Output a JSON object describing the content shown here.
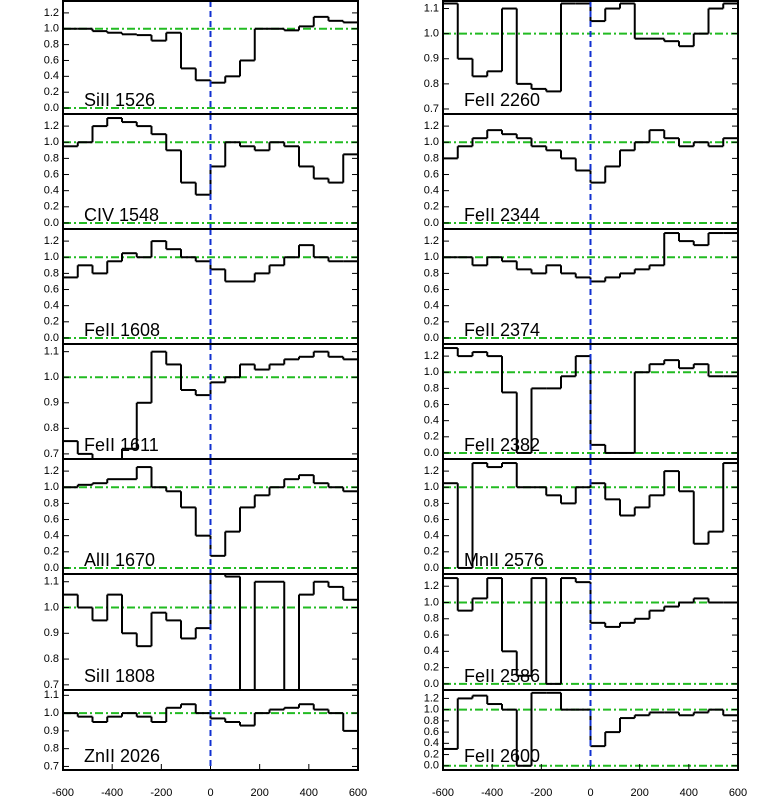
{
  "chart_data": [
    {
      "type": "step",
      "label": "SiII 1526",
      "xlim": [
        -600,
        600
      ],
      "ylim": [
        -0.075,
        1.35
      ],
      "yticks": [
        {
          "value": 0,
          "label": "0.0"
        },
        0.2,
        0.4,
        0.6,
        0.8,
        {
          "value": 1,
          "label": "1.0"
        },
        1.2
      ],
      "hlines": [
        0,
        1
      ],
      "vline": 0,
      "x": [
        -570,
        -510,
        -450,
        -390,
        -330,
        -270,
        -210,
        -150,
        -90,
        -30,
        30,
        90,
        150,
        210,
        270,
        330,
        390,
        450,
        510,
        570
      ],
      "values": [
        1.0,
        1.0,
        0.97,
        0.95,
        0.93,
        0.92,
        0.85,
        0.95,
        0.5,
        0.35,
        0.32,
        0.4,
        0.6,
        1.0,
        1.0,
        0.98,
        1.03,
        1.15,
        1.1,
        1.08
      ]
    },
    {
      "type": "step",
      "label": "CIV 1548",
      "xlim": [
        -600,
        600
      ],
      "ylim": [
        -0.075,
        1.35
      ],
      "yticks": [
        {
          "value": 0,
          "label": "0.0"
        },
        0.2,
        0.4,
        0.6,
        0.8,
        {
          "value": 1,
          "label": "1.0"
        },
        1.2
      ],
      "hlines": [
        0,
        1
      ],
      "vline": 0,
      "x": [
        -570,
        -510,
        -450,
        -390,
        -330,
        -270,
        -210,
        -150,
        -90,
        -30,
        30,
        90,
        150,
        210,
        270,
        330,
        390,
        450,
        510,
        570
      ],
      "values": [
        0.95,
        1.0,
        1.2,
        1.3,
        1.25,
        1.2,
        1.1,
        0.9,
        0.5,
        0.35,
        0.7,
        1.0,
        0.95,
        0.9,
        1.0,
        0.95,
        0.7,
        0.55,
        0.5,
        0.85
      ]
    },
    {
      "type": "step",
      "label": "FeII 1608",
      "xlim": [
        -600,
        600
      ],
      "ylim": [
        -0.075,
        1.35
      ],
      "yticks": [
        {
          "value": 0,
          "label": "0.0"
        },
        0.2,
        0.4,
        0.6,
        0.8,
        {
          "value": 1,
          "label": "1.0"
        },
        1.2
      ],
      "hlines": [
        0,
        1
      ],
      "vline": 0,
      "x": [
        -570,
        -510,
        -450,
        -390,
        -330,
        -270,
        -210,
        -150,
        -90,
        -30,
        30,
        90,
        150,
        210,
        270,
        330,
        390,
        450,
        510,
        570
      ],
      "values": [
        0.75,
        0.9,
        0.8,
        0.95,
        1.05,
        1.0,
        1.2,
        1.1,
        1.0,
        0.95,
        0.85,
        0.7,
        0.7,
        0.8,
        0.9,
        1.0,
        1.15,
        1.0,
        0.95,
        0.95
      ]
    },
    {
      "type": "step",
      "label": "FeII 1611",
      "xlim": [
        -600,
        600
      ],
      "ylim": [
        0.68,
        1.13
      ],
      "yticks": [
        0.7,
        0.8,
        0.9,
        {
          "value": 1,
          "label": "1.0"
        },
        1.1
      ],
      "hlines": [
        1
      ],
      "vline": 0,
      "x": [
        -570,
        -510,
        -450,
        -390,
        -330,
        -270,
        -210,
        -150,
        -90,
        -30,
        30,
        90,
        150,
        210,
        270,
        330,
        390,
        450,
        510,
        570
      ],
      "values": [
        0.75,
        0.7,
        0.68,
        0.68,
        0.72,
        0.9,
        1.1,
        1.05,
        0.95,
        0.93,
        0.98,
        1.0,
        1.05,
        1.03,
        1.05,
        1.07,
        1.08,
        1.1,
        1.08,
        1.07
      ]
    },
    {
      "type": "step",
      "label": "AlII 1670",
      "xlim": [
        -600,
        600
      ],
      "ylim": [
        -0.075,
        1.35
      ],
      "yticks": [
        {
          "value": 0,
          "label": "0.0"
        },
        0.2,
        0.4,
        0.6,
        0.8,
        {
          "value": 1,
          "label": "1.0"
        },
        1.2
      ],
      "hlines": [
        0,
        1
      ],
      "vline": 0,
      "x": [
        -570,
        -510,
        -450,
        -390,
        -330,
        -270,
        -210,
        -150,
        -90,
        -30,
        30,
        90,
        150,
        210,
        270,
        330,
        390,
        450,
        510,
        570
      ],
      "values": [
        1.0,
        1.03,
        1.05,
        1.1,
        1.1,
        1.25,
        1.0,
        0.95,
        0.75,
        0.4,
        0.15,
        0.45,
        0.75,
        0.9,
        1.0,
        1.1,
        1.15,
        1.05,
        1.0,
        0.95
      ]
    },
    {
      "type": "step",
      "label": "SiII 1808",
      "xlim": [
        -600,
        600
      ],
      "ylim": [
        0.68,
        1.13
      ],
      "yticks": [
        0.7,
        0.8,
        0.9,
        {
          "value": 1,
          "label": "1.0"
        },
        1.1
      ],
      "hlines": [
        1
      ],
      "vline": 0,
      "x": [
        -570,
        -510,
        -450,
        -390,
        -330,
        -270,
        -210,
        -150,
        -90,
        -30,
        30,
        90,
        150,
        210,
        270,
        330,
        390,
        450,
        510,
        570
      ],
      "values": [
        1.05,
        1.0,
        0.95,
        1.05,
        0.9,
        0.85,
        0.98,
        0.95,
        0.88,
        0.92,
        1.13,
        1.12,
        0.68,
        1.1,
        1.1,
        0.68,
        1.05,
        1.1,
        1.08,
        1.03
      ]
    },
    {
      "type": "step",
      "label": "ZnII 2026",
      "xlim": [
        -600,
        600
      ],
      "ylim": [
        0.68,
        1.13
      ],
      "yticks": [
        0.7,
        0.8,
        0.9,
        {
          "value": 1,
          "label": "1.0"
        },
        1.1
      ],
      "xticks": [
        -600,
        -400,
        -200,
        0,
        200,
        400,
        600
      ],
      "hlines": [
        1
      ],
      "vline": 0,
      "x": [
        -570,
        -510,
        -450,
        -390,
        -330,
        -270,
        -210,
        -150,
        -90,
        -30,
        30,
        90,
        150,
        210,
        270,
        330,
        390,
        450,
        510,
        570
      ],
      "values": [
        1.0,
        0.98,
        0.95,
        0.98,
        1.0,
        0.98,
        0.95,
        1.03,
        1.05,
        1.0,
        0.97,
        0.95,
        0.93,
        1.0,
        1.02,
        1.03,
        1.05,
        1.02,
        1.0,
        0.9
      ]
    },
    {
      "type": "step",
      "label": "FeII 2260",
      "xlim": [
        -600,
        600
      ],
      "ylim": [
        0.68,
        1.13
      ],
      "yticks": [
        0.7,
        0.8,
        0.9,
        {
          "value": 1,
          "label": "1.0"
        },
        1.1
      ],
      "hlines": [
        1
      ],
      "vline": 0,
      "x": [
        -570,
        -510,
        -450,
        -390,
        -330,
        -270,
        -210,
        -150,
        -90,
        -30,
        30,
        90,
        150,
        210,
        270,
        330,
        390,
        450,
        510,
        570
      ],
      "values": [
        1.12,
        0.9,
        0.83,
        0.85,
        1.1,
        0.8,
        0.78,
        0.77,
        1.12,
        1.12,
        1.05,
        1.1,
        1.12,
        0.98,
        0.98,
        0.97,
        0.95,
        1.0,
        1.1,
        1.12
      ]
    },
    {
      "type": "step",
      "label": "FeII 2344",
      "xlim": [
        -600,
        600
      ],
      "ylim": [
        -0.075,
        1.35
      ],
      "yticks": [
        {
          "value": 0,
          "label": "0.0"
        },
        0.2,
        0.4,
        0.6,
        0.8,
        {
          "value": 1,
          "label": "1.0"
        },
        1.2
      ],
      "hlines": [
        0,
        1
      ],
      "vline": 0,
      "x": [
        -570,
        -510,
        -450,
        -390,
        -330,
        -270,
        -210,
        -150,
        -90,
        -30,
        30,
        90,
        150,
        210,
        270,
        330,
        390,
        450,
        510,
        570
      ],
      "values": [
        0.8,
        0.95,
        1.05,
        1.15,
        1.1,
        1.05,
        0.95,
        0.9,
        0.8,
        0.65,
        0.5,
        0.7,
        0.9,
        1.0,
        1.15,
        1.05,
        0.95,
        1.0,
        0.95,
        1.05
      ]
    },
    {
      "type": "step",
      "label": "FeII 2374",
      "xlim": [
        -600,
        600
      ],
      "ylim": [
        -0.075,
        1.35
      ],
      "yticks": [
        {
          "value": 0,
          "label": "0.0"
        },
        0.2,
        0.4,
        0.6,
        0.8,
        {
          "value": 1,
          "label": "1.0"
        },
        1.2
      ],
      "hlines": [
        0,
        1
      ],
      "vline": 0,
      "x": [
        -570,
        -510,
        -450,
        -390,
        -330,
        -270,
        -210,
        -150,
        -90,
        -30,
        30,
        90,
        150,
        210,
        270,
        330,
        390,
        450,
        510,
        570
      ],
      "values": [
        1.0,
        1.0,
        0.9,
        1.0,
        0.95,
        0.85,
        0.8,
        0.9,
        0.8,
        0.75,
        0.7,
        0.75,
        0.8,
        0.85,
        0.9,
        1.3,
        1.2,
        1.15,
        1.3,
        1.3
      ]
    },
    {
      "type": "step",
      "label": "FeII 2382",
      "xlim": [
        -600,
        600
      ],
      "ylim": [
        -0.075,
        1.35
      ],
      "yticks": [
        {
          "value": 0,
          "label": "0.0"
        },
        0.2,
        0.4,
        0.6,
        0.8,
        {
          "value": 1,
          "label": "1.0"
        },
        1.2
      ],
      "hlines": [
        0,
        1
      ],
      "vline": 0,
      "x": [
        -570,
        -510,
        -450,
        -390,
        -330,
        -270,
        -210,
        -150,
        -90,
        -30,
        30,
        90,
        150,
        210,
        270,
        330,
        390,
        450,
        510,
        570
      ],
      "values": [
        1.3,
        1.2,
        1.25,
        1.2,
        0.75,
        0.0,
        0.8,
        0.8,
        0.95,
        1.2,
        0.1,
        0.0,
        0.0,
        1.0,
        1.1,
        1.15,
        1.05,
        1.1,
        0.95,
        0.95
      ]
    },
    {
      "type": "step",
      "label": "MnII 2576",
      "xlim": [
        -600,
        600
      ],
      "ylim": [
        -0.075,
        1.35
      ],
      "yticks": [
        {
          "value": 0,
          "label": "0.0"
        },
        0.2,
        0.4,
        0.6,
        0.8,
        {
          "value": 1,
          "label": "1.0"
        },
        1.2
      ],
      "hlines": [
        0,
        1
      ],
      "vline": 0,
      "x": [
        -570,
        -510,
        -450,
        -390,
        -330,
        -270,
        -210,
        -150,
        -90,
        -30,
        30,
        90,
        150,
        210,
        270,
        330,
        390,
        450,
        510,
        570
      ],
      "values": [
        1.05,
        0.0,
        1.3,
        1.25,
        1.3,
        1.0,
        1.0,
        0.9,
        0.8,
        1.0,
        1.05,
        0.85,
        0.65,
        0.75,
        0.9,
        1.2,
        0.95,
        0.3,
        0.45,
        1.3
      ]
    },
    {
      "type": "step",
      "label": "FeII 2586",
      "xlim": [
        -600,
        600
      ],
      "ylim": [
        -0.075,
        1.35
      ],
      "yticks": [
        {
          "value": 0,
          "label": "0.0"
        },
        0.2,
        0.4,
        0.6,
        0.8,
        {
          "value": 1,
          "label": "1.0"
        },
        1.2
      ],
      "hlines": [
        0,
        1
      ],
      "vline": 0,
      "x": [
        -570,
        -510,
        -450,
        -390,
        -330,
        -270,
        -210,
        -150,
        -90,
        -30,
        30,
        90,
        150,
        210,
        270,
        330,
        390,
        450,
        510,
        570
      ],
      "values": [
        1.3,
        0.9,
        1.05,
        1.3,
        0.4,
        0.1,
        1.3,
        0.0,
        1.3,
        1.25,
        0.75,
        0.7,
        0.75,
        0.8,
        0.9,
        0.95,
        1.0,
        1.05,
        1.0,
        1.0
      ]
    },
    {
      "type": "step",
      "label": "FeII 2600",
      "xlim": [
        -600,
        600
      ],
      "ylim": [
        -0.075,
        1.35
      ],
      "yticks": [
        {
          "value": 0,
          "label": "0.0"
        },
        0.2,
        0.4,
        0.6,
        0.8,
        {
          "value": 1,
          "label": "1.0"
        },
        1.2
      ],
      "xticks": [
        -600,
        -400,
        -200,
        0,
        200,
        400,
        600
      ],
      "hlines": [
        0,
        1
      ],
      "vline": 0,
      "x": [
        -570,
        -510,
        -450,
        -390,
        -330,
        -270,
        -210,
        -150,
        -90,
        -30,
        30,
        90,
        150,
        210,
        270,
        330,
        390,
        450,
        510,
        570
      ],
      "values": [
        0.3,
        1.2,
        1.25,
        1.1,
        1.0,
        0.0,
        1.3,
        1.3,
        1.0,
        1.0,
        0.35,
        0.6,
        0.85,
        0.9,
        0.95,
        0.95,
        0.9,
        0.95,
        1.0,
        0.9
      ]
    }
  ]
}
